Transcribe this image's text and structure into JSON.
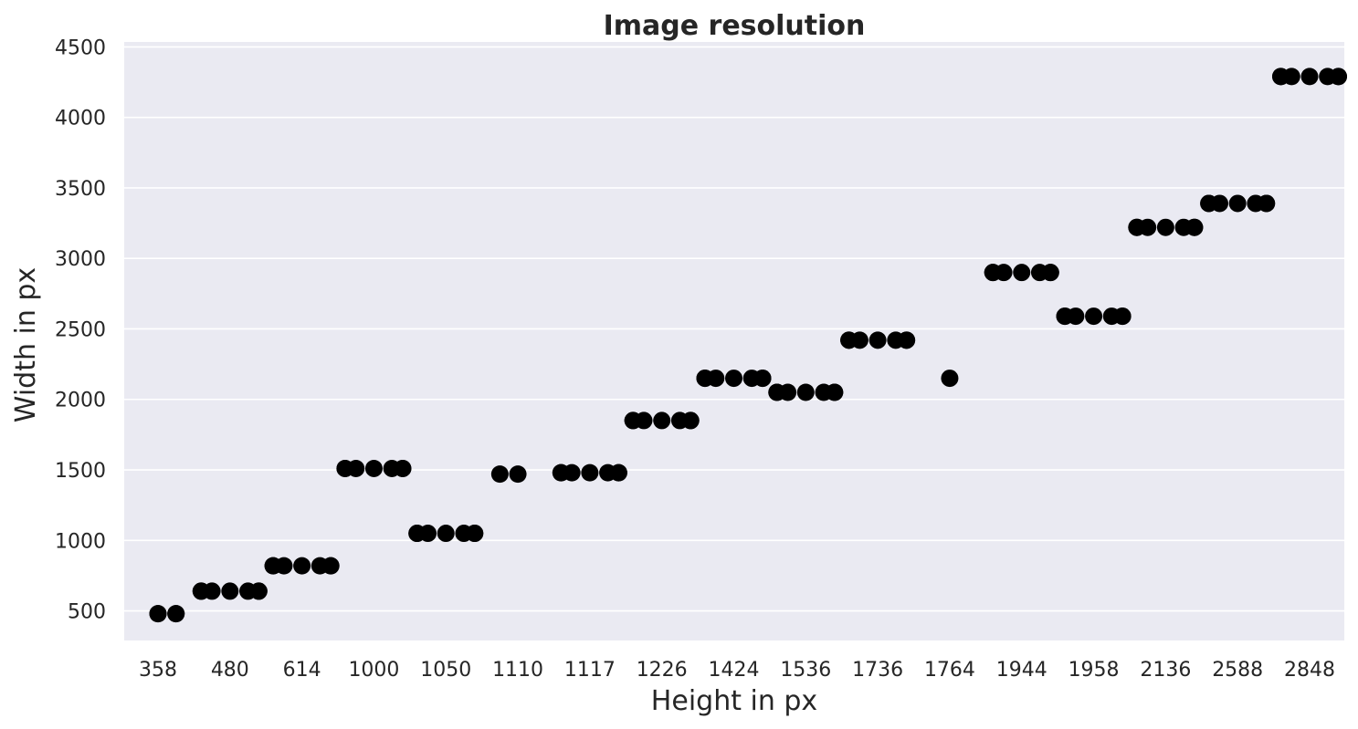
{
  "chart_data": {
    "type": "scatter",
    "title": "Image resolution",
    "xlabel": "Height in px",
    "ylabel": "Width in px",
    "x_categories": [
      "358",
      "480",
      "614",
      "1000",
      "1050",
      "1110",
      "1117",
      "1226",
      "1424",
      "1536",
      "1736",
      "1764",
      "1944",
      "1958",
      "2136",
      "2588",
      "2848"
    ],
    "yticks": [
      500,
      1000,
      1500,
      2000,
      2500,
      3000,
      3500,
      4000,
      4500
    ],
    "ylim": [
      290,
      4535
    ],
    "grid": true,
    "background_color": "#eaeaf2",
    "point_color": "#000000",
    "points": [
      {
        "x": 0.0,
        "y": 480
      },
      {
        "x": 0.0,
        "y": 480
      },
      {
        "x": 0.25,
        "y": 480
      },
      {
        "x": 0.25,
        "y": 480
      },
      {
        "x": 0.6,
        "y": 640
      },
      {
        "x": 0.6,
        "y": 640
      },
      {
        "x": 0.75,
        "y": 640
      },
      {
        "x": 1.0,
        "y": 640
      },
      {
        "x": 1.25,
        "y": 640
      },
      {
        "x": 1.4,
        "y": 640
      },
      {
        "x": 1.4,
        "y": 640
      },
      {
        "x": 1.6,
        "y": 820
      },
      {
        "x": 1.6,
        "y": 820
      },
      {
        "x": 1.75,
        "y": 820
      },
      {
        "x": 2.0,
        "y": 820
      },
      {
        "x": 2.25,
        "y": 820
      },
      {
        "x": 2.4,
        "y": 820
      },
      {
        "x": 2.4,
        "y": 820
      },
      {
        "x": 2.6,
        "y": 1510
      },
      {
        "x": 2.6,
        "y": 1510
      },
      {
        "x": 2.75,
        "y": 1510
      },
      {
        "x": 3.0,
        "y": 1510
      },
      {
        "x": 3.25,
        "y": 1510
      },
      {
        "x": 3.4,
        "y": 1510
      },
      {
        "x": 3.4,
        "y": 1510
      },
      {
        "x": 3.6,
        "y": 1050
      },
      {
        "x": 3.6,
        "y": 1050
      },
      {
        "x": 3.75,
        "y": 1050
      },
      {
        "x": 4.0,
        "y": 1050
      },
      {
        "x": 4.25,
        "y": 1050
      },
      {
        "x": 4.4,
        "y": 1050
      },
      {
        "x": 4.4,
        "y": 1050
      },
      {
        "x": 4.75,
        "y": 1470
      },
      {
        "x": 5.0,
        "y": 1470
      },
      {
        "x": 5.6,
        "y": 1480
      },
      {
        "x": 5.6,
        "y": 1480
      },
      {
        "x": 5.75,
        "y": 1480
      },
      {
        "x": 6.0,
        "y": 1480
      },
      {
        "x": 6.25,
        "y": 1480
      },
      {
        "x": 6.4,
        "y": 1480
      },
      {
        "x": 6.4,
        "y": 1480
      },
      {
        "x": 6.6,
        "y": 1850
      },
      {
        "x": 6.6,
        "y": 1850
      },
      {
        "x": 6.75,
        "y": 1850
      },
      {
        "x": 7.0,
        "y": 1850
      },
      {
        "x": 7.25,
        "y": 1850
      },
      {
        "x": 7.4,
        "y": 1850
      },
      {
        "x": 7.4,
        "y": 1850
      },
      {
        "x": 7.6,
        "y": 2150
      },
      {
        "x": 7.6,
        "y": 2150
      },
      {
        "x": 7.75,
        "y": 2150
      },
      {
        "x": 8.0,
        "y": 2150
      },
      {
        "x": 8.25,
        "y": 2150
      },
      {
        "x": 8.4,
        "y": 2150
      },
      {
        "x": 8.4,
        "y": 2150
      },
      {
        "x": 8.6,
        "y": 2050
      },
      {
        "x": 8.6,
        "y": 2050
      },
      {
        "x": 8.75,
        "y": 2050
      },
      {
        "x": 9.0,
        "y": 2050
      },
      {
        "x": 9.25,
        "y": 2050
      },
      {
        "x": 9.4,
        "y": 2050
      },
      {
        "x": 9.4,
        "y": 2050
      },
      {
        "x": 9.6,
        "y": 2420
      },
      {
        "x": 9.6,
        "y": 2420
      },
      {
        "x": 9.75,
        "y": 2420
      },
      {
        "x": 10.0,
        "y": 2420
      },
      {
        "x": 10.25,
        "y": 2420
      },
      {
        "x": 10.4,
        "y": 2420
      },
      {
        "x": 10.4,
        "y": 2420
      },
      {
        "x": 11.0,
        "y": 2150
      },
      {
        "x": 11.6,
        "y": 2900
      },
      {
        "x": 11.6,
        "y": 2900
      },
      {
        "x": 11.75,
        "y": 2900
      },
      {
        "x": 12.0,
        "y": 2900
      },
      {
        "x": 12.25,
        "y": 2900
      },
      {
        "x": 12.4,
        "y": 2900
      },
      {
        "x": 12.4,
        "y": 2900
      },
      {
        "x": 12.6,
        "y": 2590
      },
      {
        "x": 12.6,
        "y": 2590
      },
      {
        "x": 12.75,
        "y": 2590
      },
      {
        "x": 13.0,
        "y": 2590
      },
      {
        "x": 13.25,
        "y": 2590
      },
      {
        "x": 13.4,
        "y": 2590
      },
      {
        "x": 13.4,
        "y": 2590
      },
      {
        "x": 13.6,
        "y": 3220
      },
      {
        "x": 13.6,
        "y": 3220
      },
      {
        "x": 13.75,
        "y": 3220
      },
      {
        "x": 14.0,
        "y": 3220
      },
      {
        "x": 14.25,
        "y": 3220
      },
      {
        "x": 14.4,
        "y": 3220
      },
      {
        "x": 14.4,
        "y": 3220
      },
      {
        "x": 14.6,
        "y": 3390
      },
      {
        "x": 14.6,
        "y": 3390
      },
      {
        "x": 14.75,
        "y": 3390
      },
      {
        "x": 15.0,
        "y": 3390
      },
      {
        "x": 15.25,
        "y": 3390
      },
      {
        "x": 15.4,
        "y": 3390
      },
      {
        "x": 15.4,
        "y": 3390
      },
      {
        "x": 15.6,
        "y": 4290
      },
      {
        "x": 15.6,
        "y": 4290
      },
      {
        "x": 15.75,
        "y": 4290
      },
      {
        "x": 16.0,
        "y": 4290
      },
      {
        "x": 16.25,
        "y": 4290
      },
      {
        "x": 16.4,
        "y": 4290
      },
      {
        "x": 16.4,
        "y": 4290
      }
    ]
  }
}
